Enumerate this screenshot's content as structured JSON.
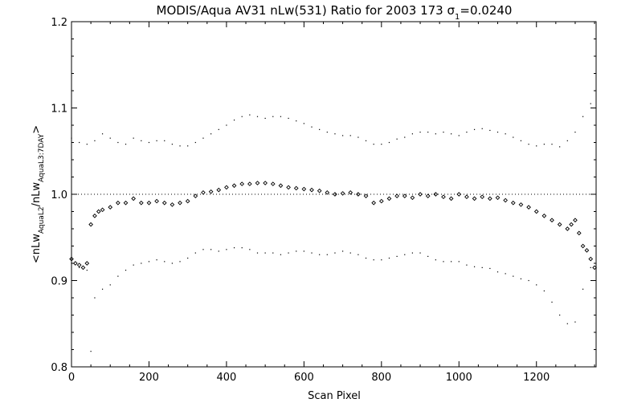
{
  "chart_data": {
    "type": "scatter",
    "title_prefix": "MODIS/Aqua AV31 nLw(531) Ratio for 2003 173 ",
    "title_sigma": "σ",
    "title_sigma_sub": "1",
    "title_suffix": "=0.0240",
    "xlabel": "Scan Pixel",
    "ylabel_parts": [
      "<nLw",
      "AquaL2",
      "/nLw",
      "AquaL3:7DAY",
      ">"
    ],
    "xlim": [
      0,
      1354
    ],
    "ylim": [
      0.8,
      1.2
    ],
    "x_ticks": [
      0,
      200,
      400,
      600,
      800,
      1000,
      1200
    ],
    "x_tick_labels": [
      "0",
      "200",
      "400",
      "600",
      "800",
      "1000",
      "1200"
    ],
    "y_ticks": [
      0.8,
      0.9,
      1.0,
      1.1,
      1.2
    ],
    "y_tick_labels": [
      "0.8",
      "0.9",
      "1.0",
      "1.1",
      "1.2"
    ],
    "reference_line": 1.0,
    "series": [
      {
        "role": "mean",
        "marker": "diamond",
        "x": [
          0,
          10,
          20,
          30,
          40,
          50,
          60,
          70,
          80,
          100,
          120,
          140,
          160,
          180,
          200,
          220,
          240,
          260,
          280,
          300,
          320,
          340,
          360,
          380,
          400,
          420,
          440,
          460,
          480,
          500,
          520,
          540,
          560,
          580,
          600,
          620,
          640,
          660,
          680,
          700,
          720,
          740,
          760,
          780,
          800,
          820,
          840,
          860,
          880,
          900,
          920,
          940,
          960,
          980,
          1000,
          1020,
          1040,
          1060,
          1080,
          1100,
          1120,
          1140,
          1160,
          1180,
          1200,
          1220,
          1240,
          1260,
          1280,
          1290,
          1300,
          1310,
          1320,
          1330,
          1340,
          1350
        ],
        "y": [
          0.925,
          0.92,
          0.918,
          0.915,
          0.92,
          0.965,
          0.975,
          0.98,
          0.982,
          0.985,
          0.99,
          0.99,
          0.995,
          0.99,
          0.99,
          0.992,
          0.99,
          0.988,
          0.99,
          0.992,
          0.998,
          1.002,
          1.003,
          1.005,
          1.008,
          1.01,
          1.012,
          1.012,
          1.013,
          1.013,
          1.012,
          1.01,
          1.008,
          1.007,
          1.006,
          1.005,
          1.004,
          1.002,
          1.0,
          1.001,
          1.002,
          1.0,
          0.998,
          0.99,
          0.992,
          0.995,
          0.998,
          0.998,
          0.996,
          1.0,
          0.998,
          1.0,
          0.997,
          0.995,
          1.0,
          0.997,
          0.995,
          0.997,
          0.995,
          0.996,
          0.993,
          0.99,
          0.988,
          0.985,
          0.98,
          0.975,
          0.97,
          0.965,
          0.96,
          0.965,
          0.97,
          0.955,
          0.94,
          0.935,
          0.925,
          0.915
        ]
      },
      {
        "role": "upper",
        "marker": "dot",
        "x": [
          0,
          20,
          40,
          60,
          80,
          100,
          120,
          140,
          160,
          180,
          200,
          220,
          240,
          260,
          280,
          300,
          320,
          340,
          360,
          380,
          400,
          420,
          440,
          460,
          480,
          500,
          520,
          540,
          560,
          580,
          600,
          620,
          640,
          660,
          680,
          700,
          720,
          740,
          760,
          780,
          800,
          820,
          840,
          860,
          880,
          900,
          920,
          940,
          960,
          980,
          1000,
          1020,
          1040,
          1060,
          1080,
          1100,
          1120,
          1140,
          1160,
          1180,
          1200,
          1220,
          1240,
          1260,
          1280,
          1300,
          1320,
          1340
        ],
        "y": [
          1.065,
          1.06,
          1.058,
          1.062,
          1.07,
          1.065,
          1.06,
          1.058,
          1.065,
          1.062,
          1.06,
          1.062,
          1.062,
          1.058,
          1.056,
          1.056,
          1.06,
          1.065,
          1.07,
          1.075,
          1.08,
          1.086,
          1.09,
          1.092,
          1.09,
          1.088,
          1.09,
          1.09,
          1.088,
          1.085,
          1.082,
          1.078,
          1.075,
          1.072,
          1.07,
          1.068,
          1.068,
          1.066,
          1.062,
          1.058,
          1.058,
          1.06,
          1.064,
          1.066,
          1.07,
          1.072,
          1.072,
          1.07,
          1.072,
          1.07,
          1.068,
          1.072,
          1.075,
          1.076,
          1.074,
          1.072,
          1.07,
          1.066,
          1.062,
          1.058,
          1.056,
          1.058,
          1.058,
          1.055,
          1.062,
          1.072,
          1.09,
          1.105
        ]
      },
      {
        "role": "lower",
        "marker": "dot",
        "x": [
          0,
          20,
          40,
          50,
          60,
          80,
          100,
          120,
          140,
          160,
          180,
          200,
          220,
          240,
          260,
          280,
          300,
          320,
          340,
          360,
          380,
          400,
          420,
          440,
          460,
          480,
          500,
          520,
          540,
          560,
          580,
          600,
          620,
          640,
          660,
          680,
          700,
          720,
          740,
          760,
          780,
          800,
          820,
          840,
          860,
          880,
          900,
          920,
          940,
          960,
          980,
          1000,
          1020,
          1040,
          1060,
          1080,
          1100,
          1120,
          1140,
          1160,
          1180,
          1200,
          1220,
          1240,
          1260,
          1280,
          1300,
          1320,
          1340
        ],
        "y": [
          0.92,
          0.915,
          0.912,
          0.818,
          0.88,
          0.89,
          0.895,
          0.905,
          0.912,
          0.918,
          0.92,
          0.922,
          0.924,
          0.922,
          0.92,
          0.922,
          0.926,
          0.932,
          0.936,
          0.936,
          0.934,
          0.936,
          0.938,
          0.938,
          0.936,
          0.932,
          0.932,
          0.932,
          0.93,
          0.932,
          0.934,
          0.934,
          0.932,
          0.93,
          0.93,
          0.932,
          0.934,
          0.932,
          0.93,
          0.926,
          0.924,
          0.924,
          0.926,
          0.928,
          0.93,
          0.932,
          0.932,
          0.928,
          0.924,
          0.922,
          0.922,
          0.922,
          0.918,
          0.916,
          0.915,
          0.914,
          0.91,
          0.908,
          0.905,
          0.902,
          0.9,
          0.895,
          0.888,
          0.875,
          0.86,
          0.85,
          0.852,
          0.89,
          0.915
        ]
      }
    ]
  }
}
